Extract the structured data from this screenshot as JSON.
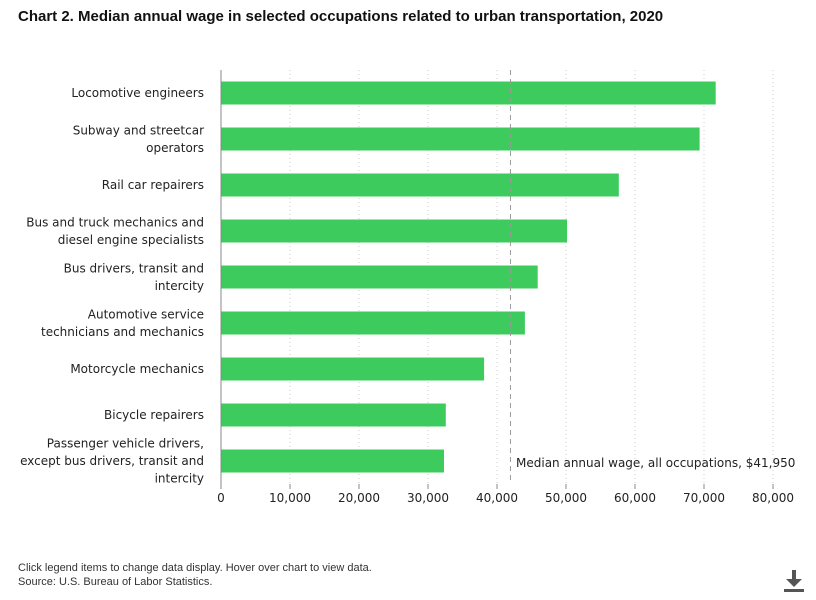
{
  "title": "Chart 2. Median annual wage in selected occupations related to urban transportation, 2020",
  "footer": {
    "note": "Click legend items to change data display. Hover over chart to view data.",
    "source": "Source: U.S. Bureau of Labor Statistics."
  },
  "download_icon": "download-icon",
  "colors": {
    "bar": "#3dcb5e",
    "grid": "#cccccc",
    "axis": "#888888",
    "reference": "#999999"
  },
  "chart_data": {
    "type": "bar",
    "orientation": "horizontal",
    "title": "Chart 2. Median annual wage in selected occupations related to urban transportation, 2020",
    "categories": [
      [
        "Locomotive engineers"
      ],
      [
        "Subway and streetcar",
        "operators"
      ],
      [
        "Rail car repairers"
      ],
      [
        "Bus and truck mechanics and",
        "diesel engine specialists"
      ],
      [
        "Bus drivers, transit and",
        "intercity"
      ],
      [
        "Automotive service",
        "technicians and mechanics"
      ],
      [
        "Motorcycle mechanics"
      ],
      [
        "Bicycle repairers"
      ],
      [
        "Passenger vehicle drivers,",
        "except bus drivers, transit and",
        "intercity"
      ]
    ],
    "values": [
      71690,
      69360,
      57650,
      50160,
      45900,
      44050,
      38130,
      32580,
      32320
    ],
    "xlim": [
      0,
      80000
    ],
    "xticks": [
      0,
      10000,
      20000,
      30000,
      40000,
      50000,
      60000,
      70000,
      80000
    ],
    "xtick_labels": [
      "0",
      "10,000",
      "20,000",
      "30,000",
      "40,000",
      "50,000",
      "60,000",
      "70,000",
      "80,000"
    ],
    "grid": true,
    "reference_line": {
      "value": 41950,
      "label": "Median annual wage, all occupations, $41,950"
    }
  }
}
